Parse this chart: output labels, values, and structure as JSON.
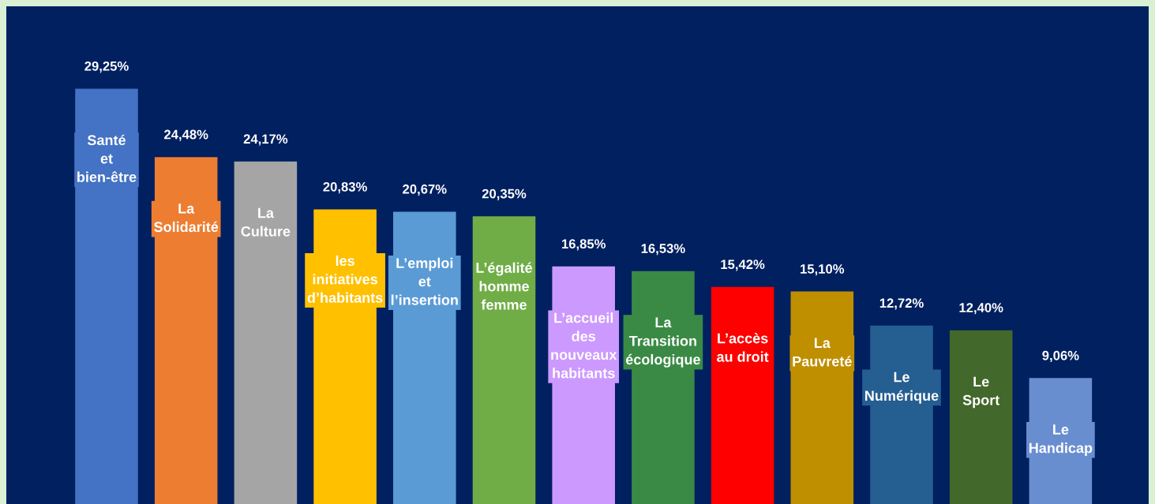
{
  "chart_data": {
    "type": "bar",
    "categories": [
      "Santé\net\nbien-être",
      "La\nSolidarité",
      "La\nCulture",
      "les\ninitiatives\nd’habitants",
      "L’emploi\net\nl’insertion",
      "L’égalité\nhomme\nfemme",
      "L’accueil\ndes\nnouveaux\nhabitants",
      "La\nTransition\nécologique",
      "L’accès\nau droit",
      "La\nPauvreté",
      "Le\nNumérique",
      "Le\nSport",
      "Le\nHandicap"
    ],
    "values": [
      29.25,
      24.48,
      24.17,
      20.83,
      20.67,
      20.35,
      16.85,
      16.53,
      15.42,
      15.1,
      12.72,
      12.4,
      9.06
    ],
    "colors": [
      "#4472c4",
      "#ed7d31",
      "#a5a5a5",
      "#ffc000",
      "#5b9bd5",
      "#70ad47",
      "#cc99ff",
      "#3a8a45",
      "#ff0000",
      "#bf8f00",
      "#255e91",
      "#43682b",
      "#698ed0"
    ],
    "value_labels": [
      "29,25%",
      "24,48%",
      "24,17%",
      "20,83%",
      "20,67%",
      "20,35%",
      "16,85%",
      "16,53%",
      "15,42%",
      "15,10%",
      "12,72%",
      "12,40%",
      "9,06%"
    ],
    "ylim": [
      0,
      35
    ]
  }
}
